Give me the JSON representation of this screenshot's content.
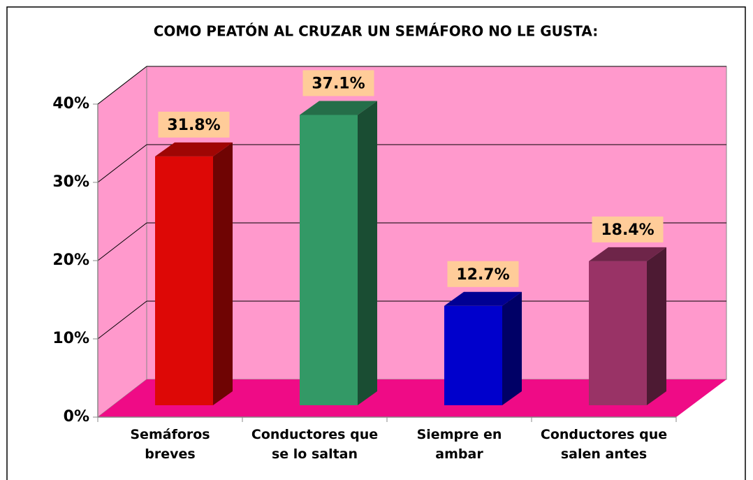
{
  "chart_data": {
    "type": "bar3d",
    "title": "COMO PEATÓN AL CRUZAR UN SEMÁFORO NO LE GUSTA:",
    "categories": [
      "Semáforos breves",
      "Conductores que se lo saltan",
      "Siempre en ambar",
      "Conductores que salen antes"
    ],
    "values": [
      31.8,
      37.1,
      12.7,
      18.4
    ],
    "value_labels": [
      "31.8%",
      "37.1%",
      "12.7%",
      "18.4%"
    ],
    "colors": [
      "#dd0806",
      "#339966",
      "#0000cc",
      "#993366"
    ],
    "ylim": [
      0,
      40
    ],
    "yticks": [
      {
        "value": 0,
        "label": "0%"
      },
      {
        "value": 10,
        "label": "10%"
      },
      {
        "value": 20,
        "label": "20%"
      },
      {
        "value": 30,
        "label": "30%"
      },
      {
        "value": 40,
        "label": "40%"
      }
    ],
    "grid": true
  }
}
